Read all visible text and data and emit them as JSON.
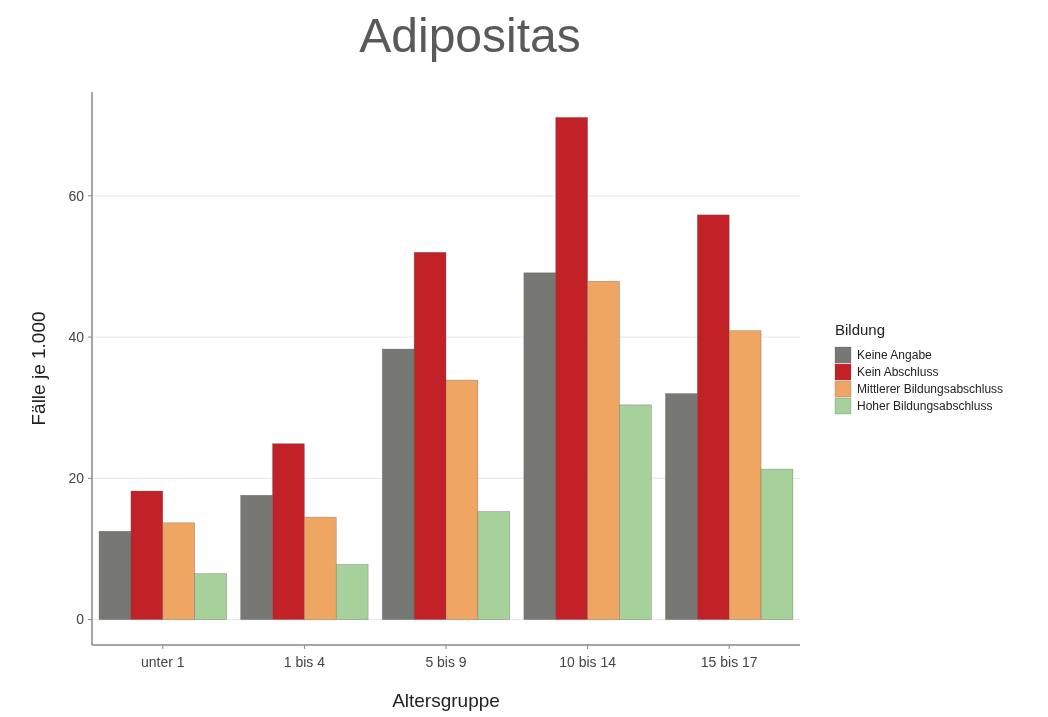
{
  "chart_data": {
    "type": "bar",
    "title": "Adipositas",
    "xlabel": "Altersgruppe",
    "ylabel": "Fälle je 1.000",
    "legend_title": "Bildung",
    "categories": [
      "unter 1",
      "1 bis 4",
      "5 bis 9",
      "10 bis 14",
      "15 bis 17"
    ],
    "series": [
      {
        "name": "Keine Angabe",
        "color": "#777874",
        "values": [
          12.5,
          17.6,
          38.3,
          49.1,
          32.0
        ]
      },
      {
        "name": "Kein Abschluss",
        "color": "#c22128",
        "values": [
          18.2,
          24.9,
          52.0,
          71.1,
          57.3
        ]
      },
      {
        "name": "Mittlerer Bildungsabschluss",
        "color": "#eea662",
        "values": [
          13.7,
          14.5,
          33.9,
          47.9,
          40.9
        ]
      },
      {
        "name": "Hoher Bildungsabschluss",
        "color": "#a6d19a",
        "values": [
          6.5,
          7.8,
          15.3,
          30.4,
          21.3
        ]
      }
    ],
    "ylim": [
      -3.6,
      74.7
    ],
    "yticks": [
      0,
      20,
      40,
      60
    ],
    "grid": "y",
    "legend": "right"
  }
}
